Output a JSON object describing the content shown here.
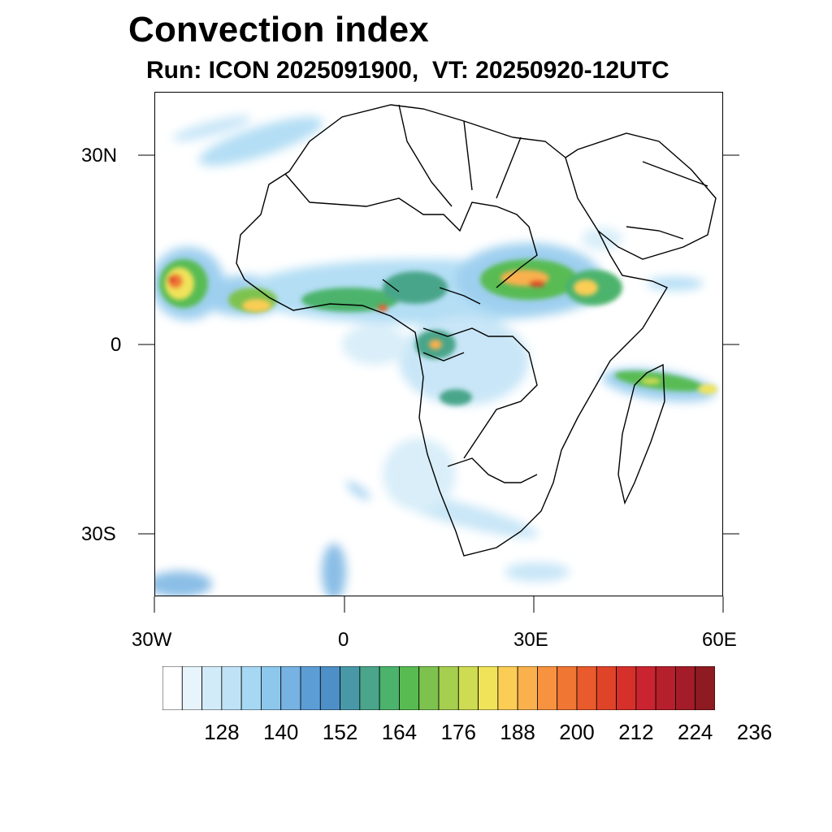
{
  "title": "Convection index",
  "subtitle": "Run: ICON 2025091900,  VT: 20250920-12UTC",
  "axes": {
    "lat_labels": [
      "30N",
      "0",
      "30S"
    ],
    "lon_labels": [
      "30W",
      "0",
      "30E",
      "60E"
    ]
  },
  "colorbar": {
    "labels": [
      "128",
      "140",
      "152",
      "164",
      "176",
      "188",
      "200",
      "212",
      "224",
      "236"
    ],
    "colors": [
      "#ffffff",
      "#e8f4fc",
      "#d2ebf8",
      "#bfe2f6",
      "#a6d8f3",
      "#8dc7ec",
      "#76b2e2",
      "#5c9dd6",
      "#4e8fc7",
      "#4898a8",
      "#4aa58a",
      "#4bb36c",
      "#58bb52",
      "#7dc24f",
      "#a6ce4f",
      "#cddc52",
      "#f0e35a",
      "#fbcd55",
      "#f9b04d",
      "#f69240",
      "#f07634",
      "#e95a2c",
      "#e04428",
      "#d6302a",
      "#c92430",
      "#b61f2c",
      "#a31c27",
      "#8e1a22"
    ]
  },
  "map": {
    "region": "Africa and surrounding seas",
    "lon_range": [
      -30,
      60
    ],
    "lat_range": [
      -40,
      40
    ]
  }
}
